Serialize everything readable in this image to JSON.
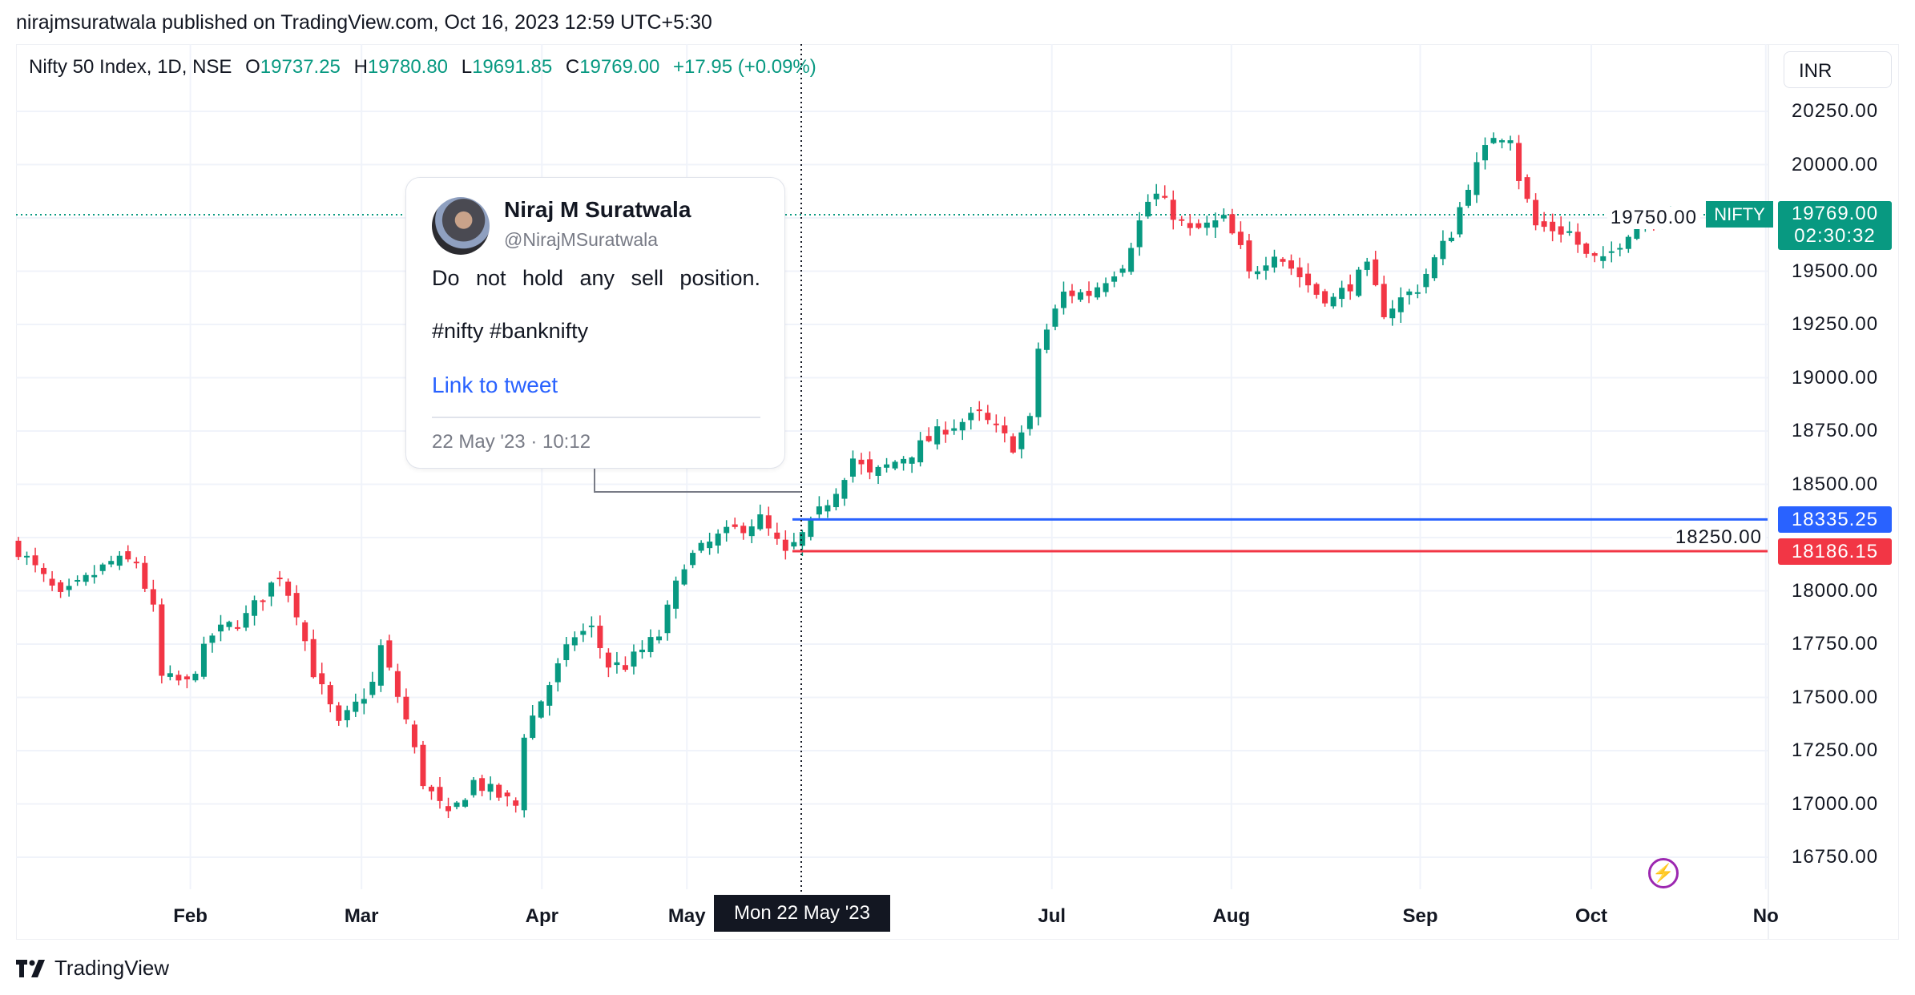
{
  "header": {
    "published": "nirajmsuratwala published on TradingView.com, Oct 16, 2023 12:59 UTC+5:30"
  },
  "legend": {
    "symbol": "Nifty 50 Index, 1D, NSE",
    "o_label": "O",
    "o": "19737.25",
    "h_label": "H",
    "h": "19780.80",
    "l_label": "L",
    "l": "19691.85",
    "c_label": "C",
    "c": "19769.00",
    "change": "+17.95 (+0.09%)"
  },
  "currency": "INR",
  "last_price": {
    "symbol_tag": "NIFTY",
    "price": "19769.00",
    "countdown": "02:30:32",
    "color": "#089981"
  },
  "lines": [
    {
      "label": "18335.25",
      "value": 18335.25,
      "color": "#2962ff"
    },
    {
      "label": "18186.15",
      "value": 18186.15,
      "color": "#f23645"
    }
  ],
  "crosshair": {
    "date_label": "Mon 22 May '23",
    "day_index": 92
  },
  "tweet": {
    "name": "Niraj M Suratwala",
    "handle": "@NirajMSuratwala",
    "text": "Do not hold any sell position.",
    "tags": "#nifty #banknifty",
    "link": "Link to tweet",
    "date": "22 May '23 · 10:12"
  },
  "footer": {
    "logo_text": "TradingView"
  },
  "icons": {
    "alert": "lightning-icon",
    "logo": "tradingview-logo-icon"
  },
  "colors": {
    "up": "#089981",
    "down": "#f23645",
    "grid": "#f0f3fa"
  },
  "chart_data": {
    "type": "candlestick",
    "title": "Nifty 50 Index, 1D, NSE",
    "ylim": [
      16600,
      20400
    ],
    "y_ticks": [
      "20250.00",
      "20000.00",
      "19750.00",
      "19500.00",
      "19250.00",
      "19000.00",
      "18750.00",
      "18500.00",
      "18250.00",
      "18000.00",
      "17750.00",
      "17500.00",
      "17250.00",
      "17000.00",
      "16750.00"
    ],
    "y_tick_values": [
      20250,
      20000,
      19750,
      19500,
      19250,
      19000,
      18750,
      18500,
      18250,
      18000,
      17750,
      17500,
      17250,
      17000,
      16750
    ],
    "x_ticks": [
      {
        "label": "Feb",
        "day": 20.4
      },
      {
        "label": "Mar",
        "day": 40.7
      },
      {
        "label": "Apr",
        "day": 62.1
      },
      {
        "label": "May",
        "day": 79.3
      },
      {
        "label": "Jul",
        "day": 122.6
      },
      {
        "label": "Aug",
        "day": 143.9
      },
      {
        "label": "Sep",
        "day": 166.3
      },
      {
        "label": "Oct",
        "day": 186.6
      },
      {
        "label": "No",
        "day": 207.3
      }
    ],
    "close_path_day_value": [
      [
        0,
        18194
      ],
      [
        5,
        17965
      ],
      [
        11,
        18136
      ],
      [
        14,
        18136
      ],
      [
        16,
        17907
      ],
      [
        17,
        17592
      ],
      [
        20,
        17564
      ],
      [
        23,
        17793
      ],
      [
        27,
        17879
      ],
      [
        31,
        18079
      ],
      [
        33,
        17907
      ],
      [
        35,
        17621
      ],
      [
        38,
        17363
      ],
      [
        42,
        17564
      ],
      [
        43,
        17735
      ],
      [
        46,
        17392
      ],
      [
        48,
        17105
      ],
      [
        51,
        16934
      ],
      [
        54,
        17105
      ],
      [
        59,
        16991
      ],
      [
        60,
        17334
      ],
      [
        63,
        17564
      ],
      [
        66,
        17793
      ],
      [
        68,
        17821
      ],
      [
        70,
        17650
      ],
      [
        72,
        17650
      ],
      [
        76,
        17793
      ],
      [
        79,
        18136
      ],
      [
        83,
        18251
      ],
      [
        88,
        18337
      ],
      [
        91,
        18165
      ],
      [
        94,
        18308
      ],
      [
        97,
        18480
      ],
      [
        99,
        18623
      ],
      [
        101,
        18537
      ],
      [
        106,
        18652
      ],
      [
        110,
        18766
      ],
      [
        114,
        18824
      ],
      [
        118,
        18681
      ],
      [
        120,
        18795
      ],
      [
        121,
        19139
      ],
      [
        124,
        19396
      ],
      [
        127,
        19396
      ],
      [
        131,
        19540
      ],
      [
        134,
        19826
      ],
      [
        135,
        19855
      ],
      [
        139,
        19683
      ],
      [
        143,
        19740
      ],
      [
        145,
        19597
      ],
      [
        146,
        19482
      ],
      [
        149,
        19597
      ],
      [
        154,
        19396
      ],
      [
        156,
        19368
      ],
      [
        160,
        19511
      ],
      [
        162,
        19311
      ],
      [
        166,
        19425
      ],
      [
        170,
        19683
      ],
      [
        172,
        19912
      ],
      [
        175,
        20141
      ],
      [
        177,
        20141
      ],
      [
        178,
        19941
      ],
      [
        180,
        19712
      ],
      [
        184,
        19683
      ],
      [
        186,
        19568
      ],
      [
        188,
        19540
      ],
      [
        192,
        19740
      ],
      [
        196,
        19769
      ]
    ]
  }
}
